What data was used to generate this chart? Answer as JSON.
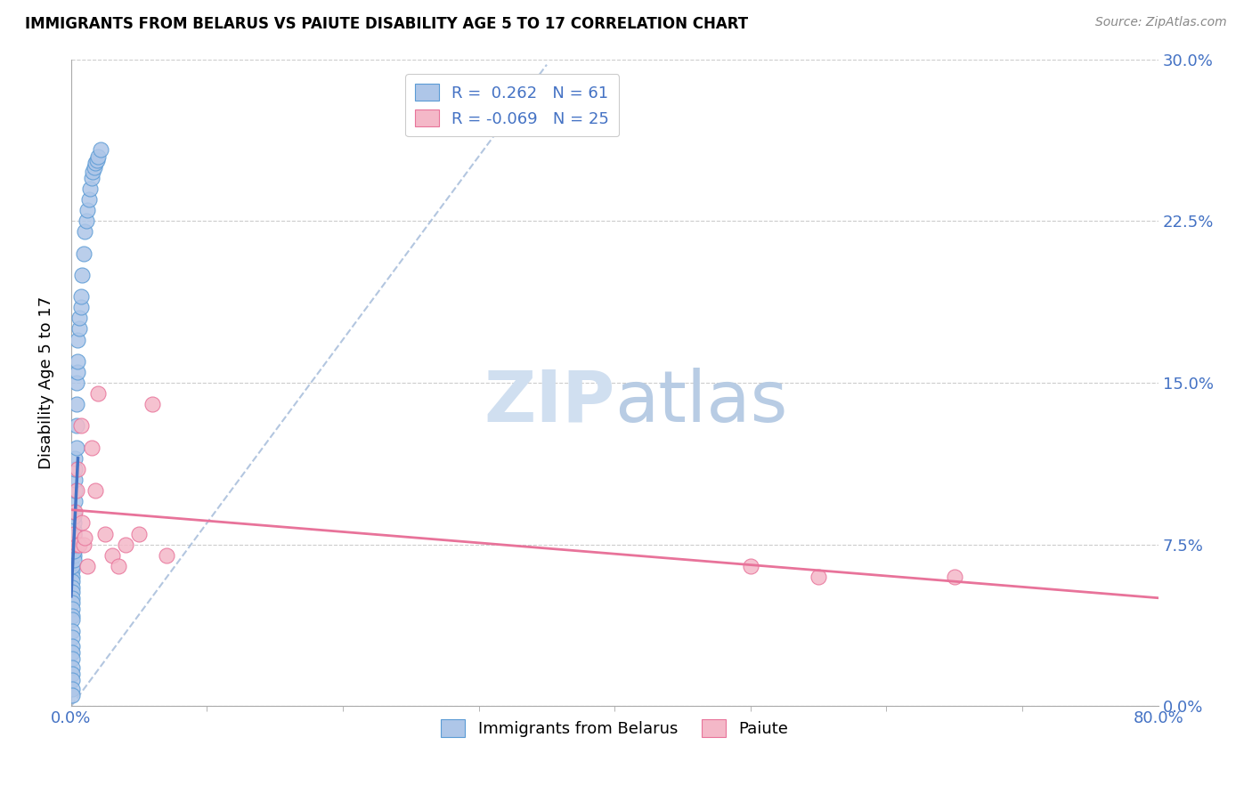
{
  "title": "IMMIGRANTS FROM BELARUS VS PAIUTE DISABILITY AGE 5 TO 17 CORRELATION CHART",
  "source": "Source: ZipAtlas.com",
  "ylabel_label": "Disability Age 5 to 17",
  "legend_label1": "Immigrants from Belarus",
  "legend_label2": "Paiute",
  "R1": 0.262,
  "N1": 61,
  "R2": -0.069,
  "N2": 25,
  "color_blue_fill": "#aec6e8",
  "color_pink_fill": "#f4b8c8",
  "color_blue_edge": "#5b9bd5",
  "color_pink_edge": "#e8739a",
  "color_blue_line": "#4472c4",
  "color_pink_line": "#e8739a",
  "color_dashed": "#a0b8d8",
  "color_axis_label": "#4472c4",
  "watermark_color": "#d0dff0",
  "blue_points_x": [
    0.001,
    0.001,
    0.001,
    0.001,
    0.001,
    0.001,
    0.001,
    0.001,
    0.001,
    0.001,
    0.001,
    0.001,
    0.001,
    0.001,
    0.001,
    0.001,
    0.001,
    0.001,
    0.001,
    0.001,
    0.001,
    0.002,
    0.002,
    0.002,
    0.002,
    0.002,
    0.002,
    0.002,
    0.002,
    0.002,
    0.002,
    0.003,
    0.003,
    0.003,
    0.003,
    0.003,
    0.004,
    0.004,
    0.004,
    0.004,
    0.005,
    0.005,
    0.005,
    0.006,
    0.006,
    0.007,
    0.007,
    0.008,
    0.009,
    0.01,
    0.011,
    0.012,
    0.013,
    0.014,
    0.015,
    0.016,
    0.017,
    0.018,
    0.019,
    0.02,
    0.022
  ],
  "blue_points_y": [
    0.063,
    0.06,
    0.058,
    0.055,
    0.053,
    0.05,
    0.048,
    0.045,
    0.042,
    0.04,
    0.035,
    0.032,
    0.028,
    0.025,
    0.022,
    0.018,
    0.015,
    0.012,
    0.008,
    0.005,
    0.065,
    0.07,
    0.068,
    0.072,
    0.075,
    0.078,
    0.08,
    0.082,
    0.085,
    0.088,
    0.09,
    0.095,
    0.1,
    0.105,
    0.11,
    0.115,
    0.12,
    0.13,
    0.14,
    0.15,
    0.155,
    0.16,
    0.17,
    0.175,
    0.18,
    0.185,
    0.19,
    0.2,
    0.21,
    0.22,
    0.225,
    0.23,
    0.235,
    0.24,
    0.245,
    0.248,
    0.25,
    0.252,
    0.253,
    0.255,
    0.258
  ],
  "pink_points_x": [
    0.001,
    0.002,
    0.003,
    0.004,
    0.005,
    0.005,
    0.006,
    0.007,
    0.008,
    0.009,
    0.01,
    0.012,
    0.015,
    0.018,
    0.02,
    0.025,
    0.03,
    0.035,
    0.04,
    0.05,
    0.06,
    0.07,
    0.5,
    0.55,
    0.65
  ],
  "pink_points_y": [
    0.075,
    0.08,
    0.09,
    0.1,
    0.075,
    0.11,
    0.075,
    0.13,
    0.085,
    0.075,
    0.078,
    0.065,
    0.12,
    0.1,
    0.145,
    0.08,
    0.07,
    0.065,
    0.075,
    0.08,
    0.14,
    0.07,
    0.065,
    0.06,
    0.06
  ],
  "xlim": [
    0.0,
    0.8
  ],
  "ylim": [
    0.0,
    0.3
  ],
  "ytick_vals": [
    0.0,
    0.075,
    0.15,
    0.225,
    0.3
  ],
  "ytick_labels": [
    "0.0%",
    "7.5%",
    "15.0%",
    "22.5%",
    "30.0%"
  ],
  "xtick_vals": [
    0.0,
    0.8
  ],
  "xtick_labels": [
    "0.0%",
    "80.0%"
  ],
  "extra_xtick_vals": [
    0.1,
    0.2,
    0.3,
    0.4,
    0.5,
    0.6,
    0.7
  ]
}
